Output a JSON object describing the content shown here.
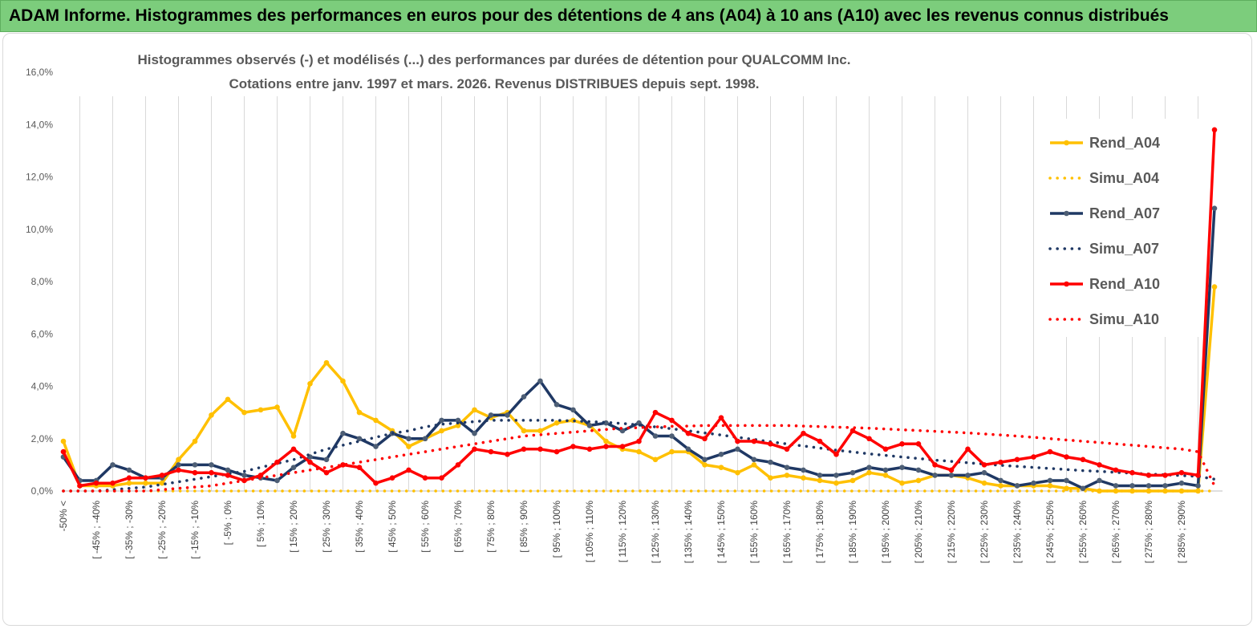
{
  "banner": {
    "title": "ADAM Informe. Histogrammes des performances en euros pour des détentions de 4 ans (A04) à 10 ans (A10) avec les revenus connus distribués",
    "color": "#7ccd7c"
  },
  "chart_data": {
    "type": "line",
    "title": "Histogrammes observés (-) et modélisés (...) des performances par durées de détention pour QUALCOMM Inc.",
    "subtitle": "Cotations entre janv. 1997 et mars. 2026. Revenus DISTRIBUES depuis sept. 1998.",
    "y_ticks": [
      "0,0%",
      "2,0%",
      "4,0%",
      "6,0%",
      "8,0%",
      "10,0%",
      "12,0%",
      "14,0%",
      "16,0%"
    ],
    "ylim": [
      0,
      16
    ],
    "y_unit": "%",
    "grid": "vertical",
    "legend_position": "right",
    "x_tick_labels": [
      "-50% <",
      "[ -45% ; -40%",
      "[ -35% ; -30%",
      "[ -25% ; -20%",
      "[ -15% ; -10%",
      "[ -5% ; 0%",
      "[ 5% ; 10%",
      "[ 15% ; 20%",
      "[ 25% ; 30%",
      "[ 35% ; 40%",
      "[ 45% ; 50%",
      "[ 55% ; 60%",
      "[ 65% ; 70%",
      "[ 75% ; 80%",
      "[ 85% ; 90%",
      "[ 95% ; 100%",
      "[ 105% ; 110%",
      "[ 115% ; 120%",
      "[ 125% ; 130%",
      "[ 135% ; 140%",
      "[ 145% ; 150%",
      "[ 155% ; 160%",
      "[ 165% ; 170%",
      "[ 175% ; 180%",
      "[ 185% ; 190%",
      "[ 195% ; 200%",
      "[ 205% ; 210%",
      "[ 215% ; 220%",
      "[ 225% ; 230%",
      "[ 235% ; 240%",
      "[ 245% ; 250%",
      "[ 255% ; 260%",
      "[ 265% ; 270%",
      "[ 275% ; 280%",
      "[ 285% ; 290%"
    ],
    "categories_count": 71,
    "series": [
      {
        "name": "Rend_A04",
        "color": "#ffc000",
        "style": "solid",
        "markers": true,
        "values": [
          1.9,
          0.2,
          0.2,
          0.2,
          0.3,
          0.3,
          0.3,
          1.2,
          1.9,
          2.9,
          3.5,
          3.0,
          3.1,
          3.2,
          2.1,
          4.1,
          4.9,
          4.2,
          3.0,
          2.7,
          2.3,
          1.7,
          2.0,
          2.3,
          2.5,
          3.1,
          2.8,
          3.0,
          2.3,
          2.3,
          2.6,
          2.7,
          2.5,
          1.9,
          1.6,
          1.5,
          1.2,
          1.5,
          1.5,
          1.0,
          0.9,
          0.7,
          1.0,
          0.5,
          0.6,
          0.5,
          0.4,
          0.3,
          0.4,
          0.7,
          0.6,
          0.3,
          0.4,
          0.6,
          0.6,
          0.5,
          0.3,
          0.2,
          0.2,
          0.2,
          0.2,
          0.1,
          0.1,
          0.0,
          0.0,
          0.0,
          0.0,
          0.0,
          0.0,
          0.0,
          7.8
        ]
      },
      {
        "name": "Simu_A04",
        "color": "#ffc000",
        "style": "dotted",
        "markers": false,
        "values": [
          0.0,
          0.0,
          0.0,
          0.0,
          0.0,
          0.0,
          0.0,
          0.0,
          0.0,
          0.0,
          0.0,
          0.0,
          0.0,
          0.0,
          0.0,
          0.0,
          0.0,
          0.0,
          0.0,
          0.0,
          0.0,
          0.0,
          0.0,
          0.0,
          0.0,
          0.0,
          0.0,
          0.0,
          0.0,
          0.0,
          0.0,
          0.0,
          0.0,
          0.0,
          0.0,
          0.0,
          0.0,
          0.0,
          0.0,
          0.0,
          0.0,
          0.0,
          0.0,
          0.0,
          0.0,
          0.0,
          0.0,
          0.0,
          0.0,
          0.0,
          0.0,
          0.0,
          0.0,
          0.0,
          0.0,
          0.0,
          0.0,
          0.0,
          0.0,
          0.0,
          0.0,
          0.0,
          0.0,
          0.0,
          0.0,
          0.0,
          0.0,
          0.0,
          0.0,
          0.0,
          0.0
        ]
      },
      {
        "name": "Rend_A07",
        "color": "#1f3864",
        "style": "solid",
        "markers": true,
        "values": [
          1.3,
          0.4,
          0.4,
          1.0,
          0.8,
          0.5,
          0.5,
          1.0,
          1.0,
          1.0,
          0.8,
          0.6,
          0.5,
          0.4,
          0.9,
          1.3,
          1.2,
          2.2,
          2.0,
          1.7,
          2.2,
          2.0,
          2.0,
          2.7,
          2.7,
          2.2,
          2.9,
          2.9,
          3.6,
          4.2,
          3.3,
          3.1,
          2.5,
          2.6,
          2.3,
          2.6,
          2.1,
          2.1,
          1.6,
          1.2,
          1.4,
          1.6,
          1.2,
          1.1,
          0.9,
          0.8,
          0.6,
          0.6,
          0.7,
          0.9,
          0.8,
          0.9,
          0.8,
          0.6,
          0.6,
          0.6,
          0.7,
          0.4,
          0.2,
          0.3,
          0.4,
          0.4,
          0.1,
          0.4,
          0.2,
          0.2,
          0.2,
          0.2,
          0.3,
          0.2,
          10.8
        ]
      },
      {
        "name": "Simu_A07",
        "color": "#1f3864",
        "style": "dotted",
        "markers": false,
        "values": [
          0.0,
          0.0,
          0.0,
          0.05,
          0.1,
          0.15,
          0.25,
          0.35,
          0.45,
          0.55,
          0.65,
          0.75,
          0.9,
          1.05,
          1.2,
          1.4,
          1.6,
          1.75,
          1.9,
          2.05,
          2.2,
          2.3,
          2.45,
          2.55,
          2.6,
          2.65,
          2.7,
          2.7,
          2.7,
          2.7,
          2.7,
          2.68,
          2.65,
          2.62,
          2.58,
          2.52,
          2.45,
          2.38,
          2.3,
          2.22,
          2.14,
          2.05,
          1.97,
          1.88,
          1.8,
          1.72,
          1.64,
          1.56,
          1.49,
          1.42,
          1.36,
          1.3,
          1.24,
          1.18,
          1.13,
          1.08,
          1.03,
          0.98,
          0.94,
          0.9,
          0.86,
          0.82,
          0.78,
          0.75,
          0.71,
          0.68,
          0.65,
          0.62,
          0.59,
          0.56,
          0.45
        ]
      },
      {
        "name": "Rend_A10",
        "color": "#ff0000",
        "style": "solid",
        "markers": true,
        "values": [
          1.5,
          0.2,
          0.3,
          0.3,
          0.5,
          0.5,
          0.6,
          0.8,
          0.7,
          0.7,
          0.6,
          0.4,
          0.6,
          1.1,
          1.6,
          1.1,
          0.7,
          1.0,
          0.9,
          0.3,
          0.5,
          0.8,
          0.5,
          0.5,
          1.0,
          1.6,
          1.5,
          1.4,
          1.6,
          1.6,
          1.5,
          1.7,
          1.6,
          1.7,
          1.7,
          1.9,
          3.0,
          2.7,
          2.2,
          2.0,
          2.8,
          1.9,
          1.9,
          1.8,
          1.6,
          2.2,
          1.9,
          1.4,
          2.3,
          2.0,
          1.6,
          1.8,
          1.8,
          1.0,
          0.8,
          1.6,
          1.0,
          1.1,
          1.2,
          1.3,
          1.5,
          1.3,
          1.2,
          1.0,
          0.8,
          0.7,
          0.6,
          0.6,
          0.7,
          0.6,
          13.8
        ]
      },
      {
        "name": "Simu_A10",
        "color": "#ff0000",
        "style": "dotted",
        "markers": false,
        "values": [
          0.0,
          0.0,
          0.0,
          0.0,
          0.0,
          0.0,
          0.05,
          0.1,
          0.15,
          0.2,
          0.3,
          0.4,
          0.5,
          0.6,
          0.7,
          0.8,
          0.9,
          1.0,
          1.1,
          1.2,
          1.3,
          1.4,
          1.5,
          1.6,
          1.7,
          1.8,
          1.9,
          2.0,
          2.1,
          2.15,
          2.2,
          2.25,
          2.3,
          2.35,
          2.4,
          2.42,
          2.45,
          2.47,
          2.48,
          2.5,
          2.5,
          2.5,
          2.5,
          2.5,
          2.5,
          2.48,
          2.46,
          2.44,
          2.42,
          2.4,
          2.37,
          2.34,
          2.31,
          2.28,
          2.25,
          2.22,
          2.18,
          2.14,
          2.1,
          2.05,
          2.0,
          1.95,
          1.9,
          1.85,
          1.8,
          1.75,
          1.7,
          1.65,
          1.6,
          1.5,
          0.2
        ]
      }
    ]
  }
}
